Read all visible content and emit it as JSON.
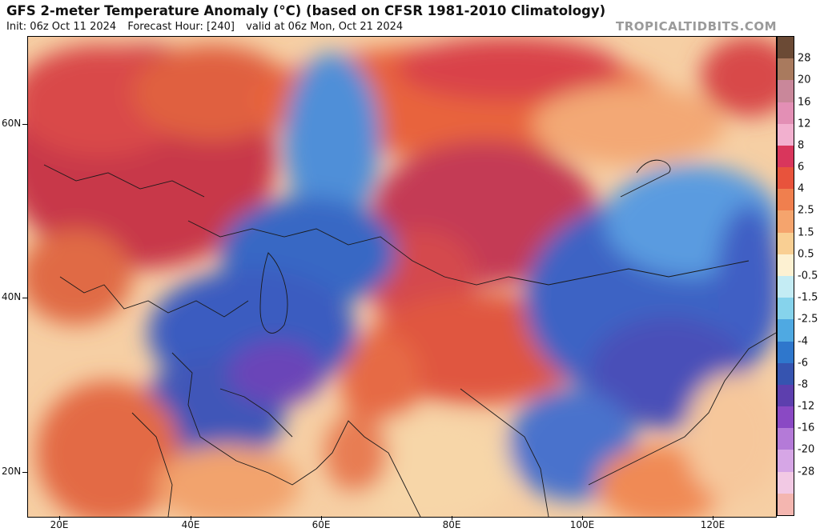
{
  "header": {
    "title": "GFS 2-meter Temperature Anomaly (°C) (based on CFSR 1981-2010 Climatology)",
    "init": "Init: 06z Oct 11 2024",
    "forecast_hour": "Forecast Hour: [240]",
    "valid": "valid at 06z Mon, Oct 21 2024",
    "watermark": "TROPICALTIDBITS.COM"
  },
  "axes": {
    "lat_labels": [
      "60N",
      "40N",
      "20N"
    ],
    "lon_labels": [
      "20E",
      "40E",
      "60E",
      "80E",
      "100E",
      "120E"
    ]
  },
  "colorbar": {
    "labels": [
      "28",
      "20",
      "16",
      "12",
      "8",
      "6",
      "4",
      "2.5",
      "1.5",
      "0.5",
      "-0.5",
      "-1.5",
      "-2.5",
      "-4",
      "-6",
      "-8",
      "-12",
      "-16",
      "-20",
      "-28"
    ],
    "colors": [
      "#6b4a35",
      "#a97a5e",
      "#c9879a",
      "#e38fb5",
      "#f2b0cf",
      "#d9365c",
      "#e8533c",
      "#f07f4e",
      "#f5a46d",
      "#f9cf93",
      "#fdf1d2",
      "#c4ecf4",
      "#86d3ec",
      "#4fa9e2",
      "#2f77cc",
      "#3654b0",
      "#5d3fae",
      "#8a49c4",
      "#b47ad8",
      "#d6a6e6",
      "#f2c9e4",
      "#f4b6b0"
    ]
  }
}
